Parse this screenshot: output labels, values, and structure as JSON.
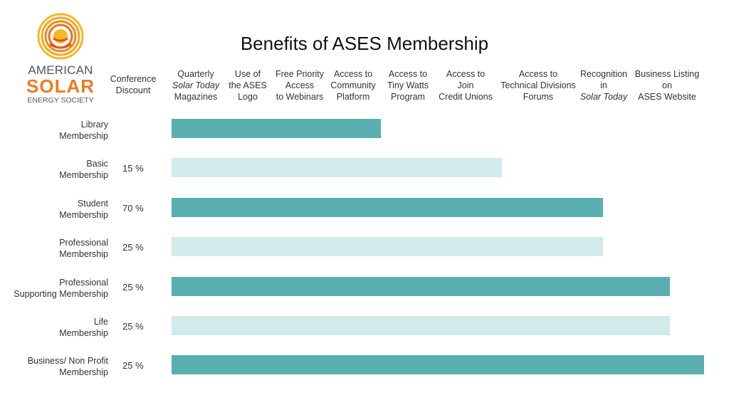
{
  "logo": {
    "line1": "AMERICAN",
    "line2": "SOLAR",
    "line3": "ENERGY SOCIETY"
  },
  "colors": {
    "dark_bar": "#5aafb1",
    "light_bar": "#d1eaea",
    "logo_orange": "#f07a1c",
    "logo_yellow": "#f5b921"
  },
  "chart_data": {
    "type": "bar",
    "orientation": "horizontal",
    "title": "Benefits of ASES Membership",
    "discount_header": [
      "Conference",
      "Discount"
    ],
    "benefits": [
      {
        "lines": [
          "Quarterly",
          "Solar Today",
          "Magazines"
        ],
        "italic": [
          1
        ]
      },
      {
        "lines": [
          "Use of",
          "the ASES",
          "Logo"
        ],
        "italic": []
      },
      {
        "lines": [
          "Free Priority",
          "Access",
          "to Webinars"
        ],
        "italic": []
      },
      {
        "lines": [
          "Access to",
          "Community",
          "Platform"
        ],
        "italic": []
      },
      {
        "lines": [
          "Access to",
          "Tiny Watts",
          "Program"
        ],
        "italic": []
      },
      {
        "lines": [
          "Access to",
          "Join",
          "Credit Unions"
        ],
        "italic": []
      },
      {
        "lines": [
          "Access to",
          "Technical Divisions",
          "Forums"
        ],
        "italic": []
      },
      {
        "lines": [
          "Recognition",
          "in",
          "Solar Today"
        ],
        "italic": [
          2
        ]
      },
      {
        "lines": [
          "Business Listing",
          "on",
          "ASES Website"
        ],
        "italic": []
      }
    ],
    "memberships": [
      {
        "label": [
          "Library",
          "Membership"
        ],
        "discount": "",
        "benefits_included": 4
      },
      {
        "label": [
          "Basic",
          "Membership"
        ],
        "discount": "15 %",
        "benefits_included": 6
      },
      {
        "label": [
          "Student",
          "Membership"
        ],
        "discount": "70 %",
        "benefits_included": 7.5
      },
      {
        "label": [
          "Professional",
          "Membership"
        ],
        "discount": "25 %",
        "benefits_included": 7.5
      },
      {
        "label": [
          "Professional",
          "Supporting Membership"
        ],
        "discount": "25 %",
        "benefits_included": 8.5
      },
      {
        "label": [
          "Life",
          "Membership"
        ],
        "discount": "25 %",
        "benefits_included": 8.5
      },
      {
        "label": [
          "Business/ Non Profit",
          "Membership"
        ],
        "discount": "25 %",
        "benefits_included": 9
      }
    ]
  }
}
